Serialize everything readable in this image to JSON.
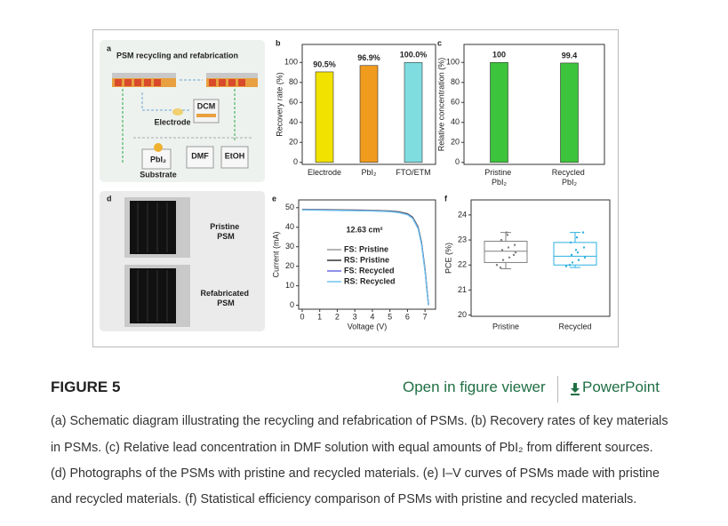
{
  "figure": {
    "panel_a": {
      "letter": "a",
      "title": "PSM recycling and refabrication",
      "labels": [
        "DCM",
        "Electrode",
        "PbI₂",
        "DMF",
        "EtOH",
        "Substrate"
      ]
    },
    "panel_d": {
      "letter": "d",
      "labels": [
        "Pristine PSM",
        "Refabricated PSM"
      ]
    }
  },
  "chart_data": [
    {
      "type": "bar",
      "panel": "b",
      "ylabel": "Recovery rate (%)",
      "categories": [
        "Electrode",
        "PbI₂",
        "FTO/ETM"
      ],
      "values": [
        90.5,
        96.9,
        100
      ],
      "value_labels": [
        "90.5%",
        "96.9%",
        "100.0%"
      ],
      "colors": [
        "#f2e200",
        "#f09a1e",
        "#7fdde0"
      ],
      "ylim": [
        -2,
        118
      ],
      "yticks": [
        0,
        20,
        40,
        60,
        80,
        100
      ]
    },
    {
      "type": "bar",
      "panel": "c",
      "ylabel": "Relative concentration (%)",
      "categories": [
        "Pristine PbI₂",
        "Recycled PbI₂"
      ],
      "values": [
        100,
        99.4
      ],
      "colors": [
        "#3cc43c",
        "#3cc43c"
      ],
      "ylim": [
        -2,
        118
      ],
      "yticks": [
        0,
        20,
        40,
        60,
        80,
        100
      ]
    },
    {
      "type": "line",
      "panel": "e",
      "xlabel": "Voltage (V)",
      "ylabel": "Current (mA)",
      "annotation": "12.63 cm²",
      "x": [
        0,
        1,
        2,
        3,
        4,
        5,
        5.5,
        6,
        6.3,
        6.6,
        6.8,
        7.0,
        7.1,
        7.2
      ],
      "series": [
        {
          "name": "FS: Pristine",
          "color": "#9a9a9a",
          "values": [
            49.2,
            49.1,
            49.0,
            48.9,
            48.7,
            48.4,
            48.0,
            47.0,
            45.2,
            40.3,
            32.5,
            18.5,
            9.5,
            0.5
          ]
        },
        {
          "name": "RS: Pristine",
          "color": "#333333",
          "values": [
            49.0,
            48.9,
            48.8,
            48.7,
            48.5,
            48.2,
            47.8,
            46.8,
            45.0,
            40.0,
            32.0,
            18.0,
            9.0,
            0.2
          ]
        },
        {
          "name": "FS: Recycled",
          "color": "#6a6ae0",
          "values": [
            48.9,
            48.8,
            48.7,
            48.6,
            48.4,
            48.1,
            47.6,
            46.6,
            44.7,
            39.6,
            31.5,
            17.5,
            8.6,
            0.1
          ]
        },
        {
          "name": "RS: Recycled",
          "color": "#6cc4ec",
          "values": [
            48.8,
            48.7,
            48.6,
            48.5,
            48.3,
            48.0,
            47.5,
            46.4,
            44.5,
            39.3,
            31.2,
            17.2,
            8.3,
            0.0
          ]
        }
      ],
      "xlim": [
        -0.2,
        7.6
      ],
      "xticks": [
        0,
        1,
        2,
        3,
        4,
        5,
        6,
        7
      ],
      "ylim": [
        -2,
        54
      ],
      "yticks": [
        0,
        10,
        20,
        30,
        40,
        50
      ],
      "legend": "center"
    },
    {
      "type": "box",
      "panel": "f",
      "ylabel": "PCE (%)",
      "categories": [
        "Pristine",
        "Recycled"
      ],
      "colors": [
        "#808080",
        "#2ab0e0"
      ],
      "boxes": [
        {
          "min": 21.85,
          "q1": 22.1,
          "median": 22.55,
          "q3": 22.95,
          "max": 23.3,
          "points": [
            22.0,
            22.2,
            22.3,
            22.5,
            22.6,
            22.7,
            22.8,
            23.0,
            23.2,
            22.4,
            21.9,
            23.3
          ]
        },
        {
          "min": 21.9,
          "q1": 22.0,
          "median": 22.35,
          "q3": 22.9,
          "max": 23.3,
          "points": [
            21.95,
            22.1,
            22.2,
            22.3,
            22.4,
            22.5,
            22.7,
            22.9,
            23.1,
            23.3,
            22.0,
            22.6
          ]
        }
      ],
      "ylim": [
        19.95,
        24.6
      ],
      "yticks": [
        20,
        21,
        22,
        23,
        24
      ]
    }
  ],
  "header": {
    "title": "FIGURE 5",
    "links": [
      "Open in figure viewer",
      "PowerPoint"
    ]
  },
  "caption": [
    "(a) Schematic diagram illustrating the recycling and refabrication of PSMs. (b) Recovery rates of key materials",
    "in PSMs. (c) Relative lead concentration in DMF solution with equal amounts of PbI₂ from different sources.",
    "(d) Photographs of the PSMs with pristine and recycled materials. (e) I–V curves of PSMs made with pristine",
    "and recycled materials. (f) Statistical efficiency comparison of PSMs with pristine and recycled materials."
  ]
}
